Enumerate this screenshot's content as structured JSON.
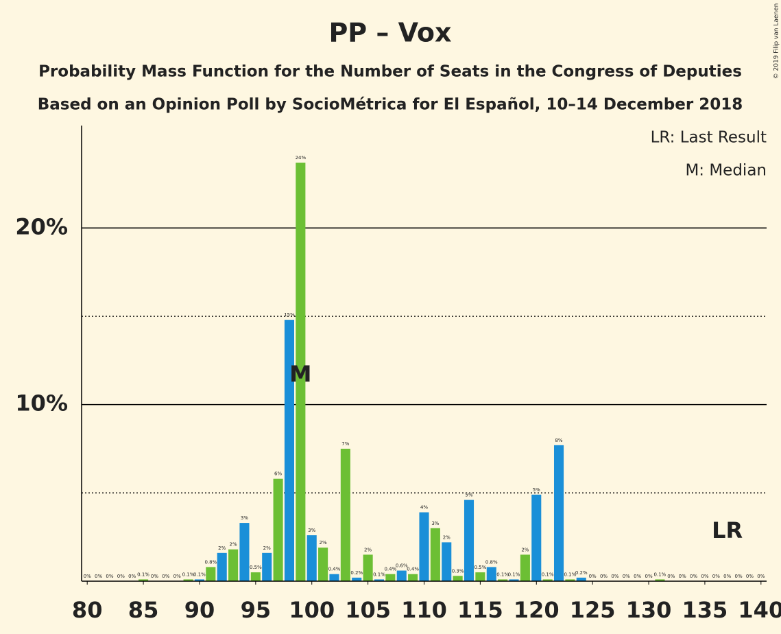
{
  "chart_data": {
    "type": "bar",
    "title": "PP – Vox",
    "subtitle": "Probability Mass Function for the Number of Seats in the Congress of Deputies",
    "subtitle2": "Based on an Opinion Poll by SocioMétrica for El Español, 10–14 December 2018",
    "copyright": "© 2019 Filip van Laenen",
    "legend": [
      "LR: Last Result",
      "M: Median"
    ],
    "x": [
      80,
      81,
      82,
      83,
      84,
      85,
      86,
      87,
      88,
      89,
      90,
      91,
      92,
      93,
      94,
      95,
      96,
      97,
      98,
      99,
      100,
      101,
      102,
      103,
      104,
      105,
      106,
      107,
      108,
      109,
      110,
      111,
      112,
      113,
      114,
      115,
      116,
      117,
      118,
      119,
      120,
      121,
      122,
      123,
      124,
      125,
      126,
      127,
      128,
      129,
      130,
      131,
      132,
      133,
      134,
      135,
      136,
      137,
      138,
      139,
      140
    ],
    "values": [
      0,
      0,
      0,
      0,
      0,
      0.1,
      0,
      0,
      0,
      0.1,
      0.1,
      0.8,
      1.6,
      1.8,
      3.3,
      0.5,
      1.6,
      5.8,
      14.8,
      23.7,
      2.6,
      1.9,
      0.4,
      7.5,
      0.2,
      1.5,
      0.1,
      0.4,
      0.6,
      0.4,
      3.9,
      3.0,
      2.2,
      0.3,
      4.6,
      0.5,
      0.8,
      0.1,
      0.1,
      1.5,
      4.9,
      0.1,
      7.7,
      0.1,
      0.2,
      0,
      0,
      0,
      0,
      0,
      0,
      0.1,
      0,
      0,
      0,
      0,
      0,
      0,
      0,
      0,
      0
    ],
    "value_labels": [
      "0%",
      "0%",
      "0%",
      "0%",
      "0%",
      "0.1%",
      "0%",
      "0%",
      "0%",
      "0.1%",
      "0.1%",
      "0.8%",
      "2%",
      "2%",
      "3%",
      "0.5%",
      "2%",
      "6%",
      "15%",
      "24%",
      "3%",
      "2%",
      "0.4%",
      "7%",
      "0.2%",
      "2%",
      "0.1%",
      "0.4%",
      "0.6%",
      "0.4%",
      "4%",
      "3%",
      "2%",
      "0.3%",
      "5%",
      "0.5%",
      "0.8%",
      "0.1%",
      "0.1%",
      "2%",
      "5%",
      "0.1%",
      "8%",
      "0.1%",
      "0.2%",
      "0%",
      "0%",
      "0%",
      "0%",
      "0%",
      "0%",
      "0.1%",
      "0%",
      "0%",
      "0%",
      "0%",
      "0%",
      "0%",
      "0%",
      "0%",
      "0%"
    ],
    "colors": [
      "#1a8fd8",
      "#6cbf34"
    ],
    "median": {
      "value": 99,
      "label": "M"
    },
    "last_result": {
      "value": 137,
      "label": "LR"
    },
    "xlim": [
      79.5,
      140.5
    ],
    "xticks": [
      80,
      85,
      90,
      95,
      100,
      105,
      110,
      115,
      120,
      125,
      130,
      135,
      140
    ],
    "ylim": [
      0,
      25.8
    ],
    "yticks": [
      {
        "value": 10,
        "label": "10%"
      },
      {
        "value": 20,
        "label": "20%"
      }
    ],
    "minor_yticks": [
      5,
      15
    ],
    "grid": true
  }
}
